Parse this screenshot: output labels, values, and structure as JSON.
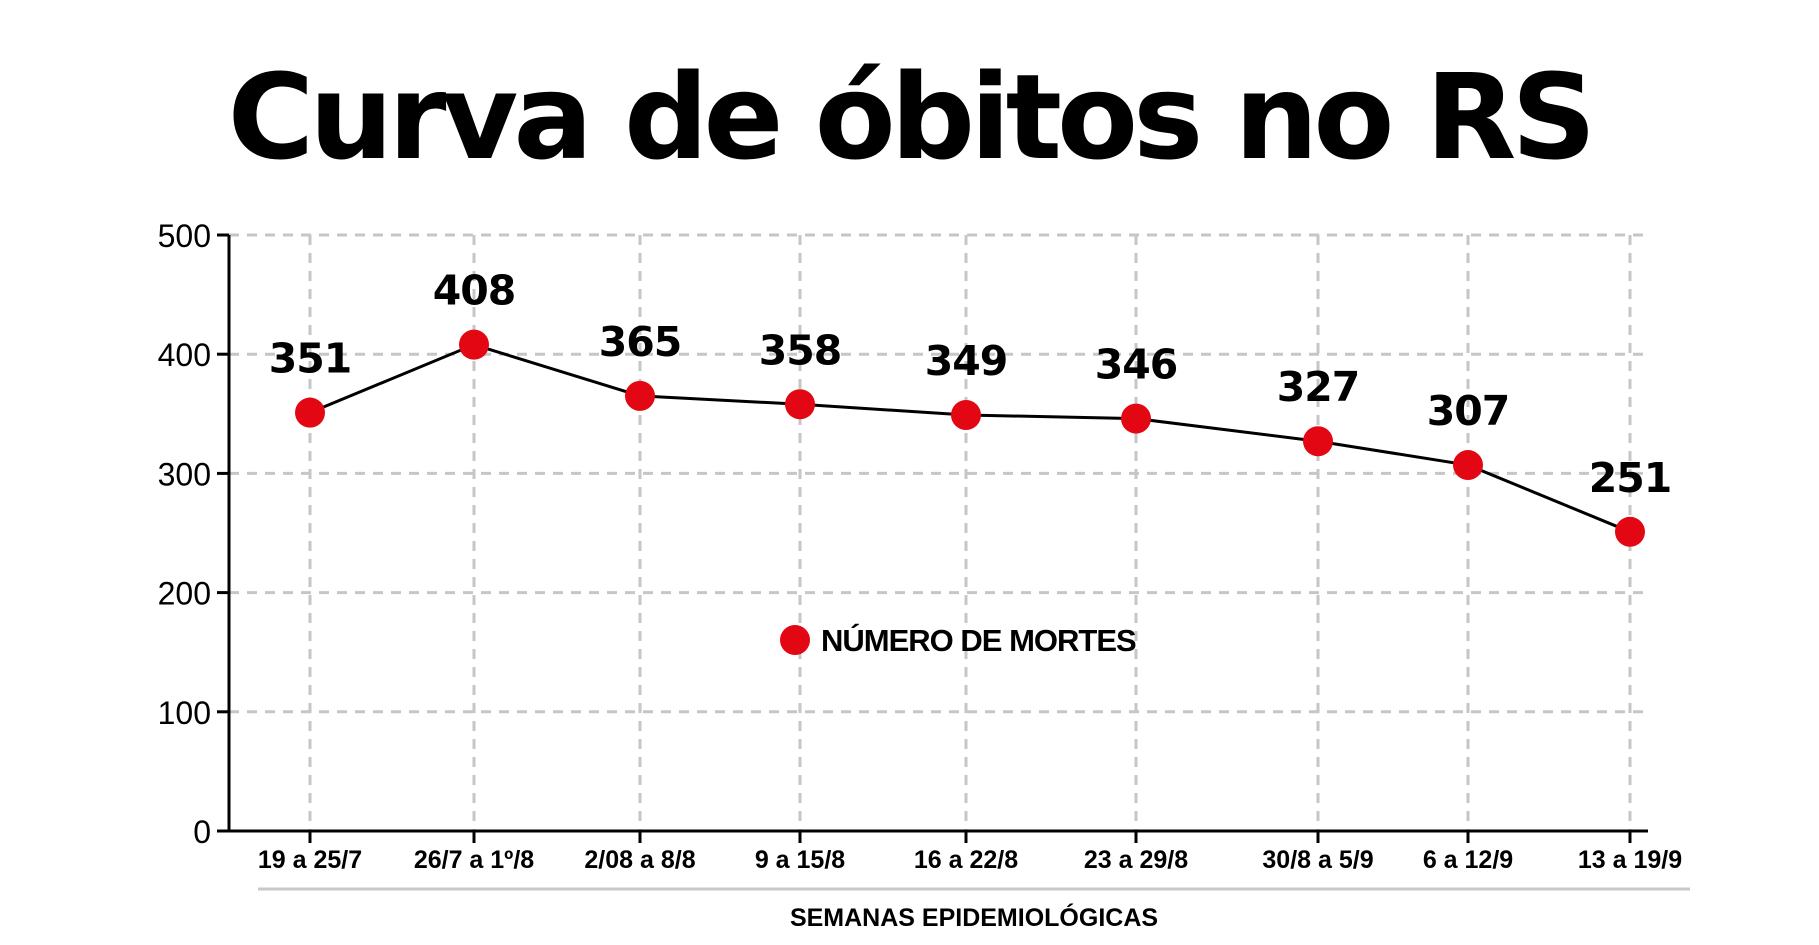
{
  "chart_data": {
    "type": "line",
    "title": "Curva de óbitos no RS",
    "xlabel": "SEMANAS EPIDEMIOLÓGICAS",
    "ylabel": "",
    "categories": [
      "19 a 25/7",
      "26/7 a 1º/8",
      "2/08 a 8/8",
      "9 a 15/8",
      "16 a 22/8",
      "23 a 29/8",
      "30/8 a 5/9",
      "6 a 12/9",
      "13 a 19/9"
    ],
    "series": [
      {
        "name": "NÚMERO DE MORTES",
        "values": [
          351,
          408,
          365,
          358,
          349,
          346,
          327,
          307,
          251
        ],
        "color": "#e30613"
      }
    ],
    "ylim": [
      0,
      500
    ],
    "yticks": [
      0,
      100,
      200,
      300,
      400,
      500
    ],
    "grid": true,
    "legend_position": "center"
  }
}
